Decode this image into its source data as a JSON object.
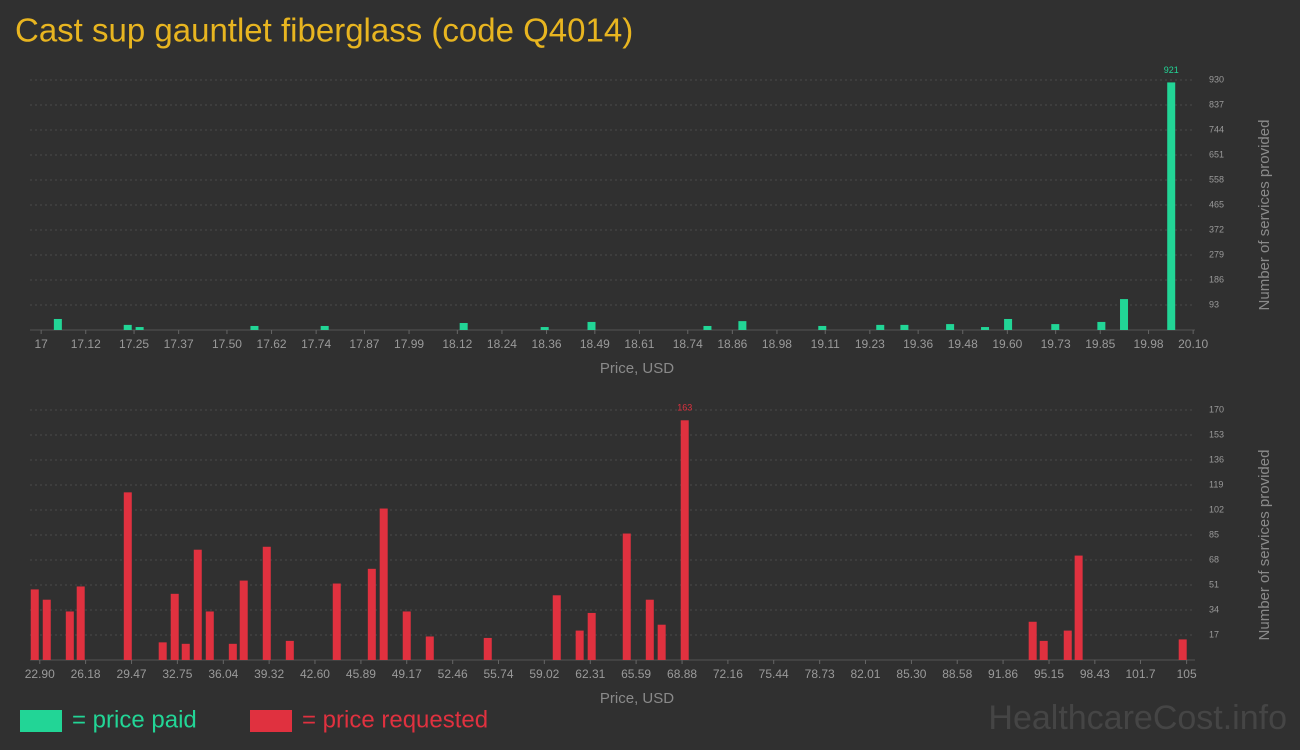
{
  "title": "Cast sup gauntlet fiberglass (code Q4014)",
  "watermark": "HealthcareCost.info",
  "chart_data": [
    {
      "type": "bar",
      "xlabel": "Price, USD",
      "ylabel": "Number of services provided",
      "grid": true,
      "x": [
        17.045,
        17.233,
        17.265,
        17.574,
        17.763,
        18.137,
        18.355,
        18.481,
        18.793,
        18.887,
        19.102,
        19.258,
        19.323,
        19.446,
        19.54,
        19.602,
        19.729,
        19.853,
        19.914,
        20.041
      ],
      "series": [
        {
          "name": "= price paid",
          "color": "#22d596",
          "values": [
            41,
            19,
            11,
            15,
            15,
            26,
            11,
            30,
            15,
            33,
            15,
            19,
            19,
            22,
            11,
            41,
            22,
            30,
            115,
            921
          ]
        }
      ],
      "xlim": [
        16.97,
        20.105
      ],
      "ylim": [
        0,
        930
      ],
      "xticks": [
        17,
        17.12,
        17.25,
        17.37,
        {
          "value": 17.5,
          "label": "17.50"
        },
        17.62,
        17.74,
        17.87,
        17.99,
        18.12,
        18.24,
        18.36,
        18.49,
        18.61,
        18.74,
        18.86,
        18.98,
        19.11,
        19.23,
        19.36,
        19.48,
        {
          "value": 19.6,
          "label": "19.60"
        },
        19.73,
        19.85,
        19.98,
        {
          "value": 20.1,
          "label": "20.10"
        }
      ],
      "yticks": [
        93,
        186,
        279,
        372,
        465,
        558,
        651,
        744,
        837,
        930
      ]
    },
    {
      "type": "bar",
      "xlabel": "Price, USD",
      "ylabel": "Number of services provided",
      "grid": true,
      "x": [
        22.54,
        23.4,
        25.05,
        25.83,
        29.2,
        31.7,
        32.56,
        33.35,
        34.21,
        35.07,
        36.72,
        37.5,
        39.15,
        40.8,
        44.16,
        46.67,
        47.52,
        49.17,
        50.82,
        54.97,
        59.91,
        61.55,
        62.41,
        64.92,
        66.57,
        67.42,
        69.07,
        93.98,
        94.77,
        96.49,
        97.27,
        104.72
      ],
      "series": [
        {
          "name": "= price requested",
          "color": "#e0313f",
          "values": [
            48,
            41,
            33,
            50,
            114,
            12,
            45,
            11,
            75,
            33,
            11,
            54,
            77,
            13,
            52,
            62,
            103,
            33,
            16,
            15,
            44,
            20,
            32,
            86,
            41,
            24,
            163,
            26,
            13,
            20,
            71,
            14
          ]
        }
      ],
      "xlim": [
        22.2,
        105.6
      ],
      "ylim": [
        0,
        170
      ],
      "xticks": [
        {
          "value": 22.9,
          "label": "22.90"
        },
        26.18,
        29.47,
        32.75,
        36.04,
        39.32,
        {
          "value": 42.6,
          "label": "42.60"
        },
        45.89,
        49.17,
        52.46,
        55.74,
        59.02,
        62.31,
        65.59,
        68.88,
        72.16,
        75.44,
        78.73,
        82.01,
        {
          "value": 85.3,
          "label": "85.30"
        },
        88.58,
        91.86,
        95.15,
        98.43,
        101.7,
        105
      ],
      "yticks": [
        17,
        34,
        51,
        68,
        85,
        102,
        119,
        136,
        153,
        170
      ]
    }
  ]
}
